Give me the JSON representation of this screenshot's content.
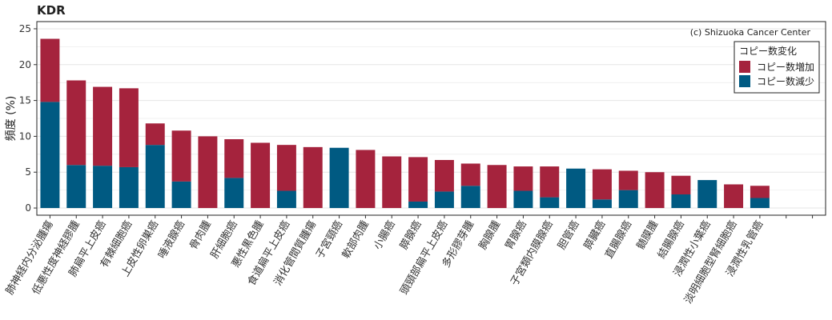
{
  "chart_data": {
    "type": "bar",
    "stacked": true,
    "title": "KDR",
    "ylabel": "頻度 (%)",
    "xlabel": "",
    "ylim": [
      -1,
      26
    ],
    "yticks": [
      0,
      5,
      10,
      15,
      20,
      25
    ],
    "grid": true,
    "credit": "(c) Shizuoka Cancer Center",
    "legend": {
      "title": "コピー数変化",
      "position": "top-right"
    },
    "categories": [
      "肺神経内分泌腫瘍",
      "低悪性度神経膠腫",
      "肺扁平上皮癌",
      "有棘細胞癌",
      "上皮性卵巣癌",
      "唾液腺癌",
      "骨肉腫",
      "肝細胞癌",
      "悪性黒色腫",
      "食道扁平上皮癌",
      "消化管間質腫瘍",
      "子宮頸癌",
      "軟部肉腫",
      "小腸癌",
      "膵腺癌",
      "頭頸部扁平上皮癌",
      "多形膠芽腫",
      "胸腺腫",
      "胃腺癌",
      "子宮類内膜腺癌",
      "胆管癌",
      "膵臓癌",
      "直腸腺癌",
      "髄膜腫",
      "結腸腺癌",
      "浸潤性小葉癌",
      "淡明細胞型腎細胞癌",
      "浸潤性乳管癌",
      "",
      ""
    ],
    "series": [
      {
        "name": "コピー数減少",
        "color": "#005a82",
        "values": [
          14.8,
          6.0,
          5.9,
          5.7,
          8.8,
          3.7,
          0,
          4.2,
          0,
          2.4,
          0,
          8.4,
          0,
          0,
          0.9,
          2.3,
          3.1,
          0,
          2.4,
          1.5,
          5.5,
          1.2,
          2.5,
          0,
          1.9,
          3.9,
          0,
          1.4,
          0,
          0
        ]
      },
      {
        "name": "コピー数増加",
        "color": "#a5233d",
        "values": [
          8.8,
          11.8,
          11.0,
          11.0,
          3.0,
          7.1,
          10.0,
          5.4,
          9.1,
          6.4,
          8.5,
          0,
          8.1,
          7.2,
          6.2,
          4.4,
          3.1,
          6.0,
          3.4,
          4.3,
          0,
          4.2,
          2.7,
          5.0,
          2.6,
          0,
          3.3,
          1.7,
          0,
          0
        ]
      }
    ]
  }
}
